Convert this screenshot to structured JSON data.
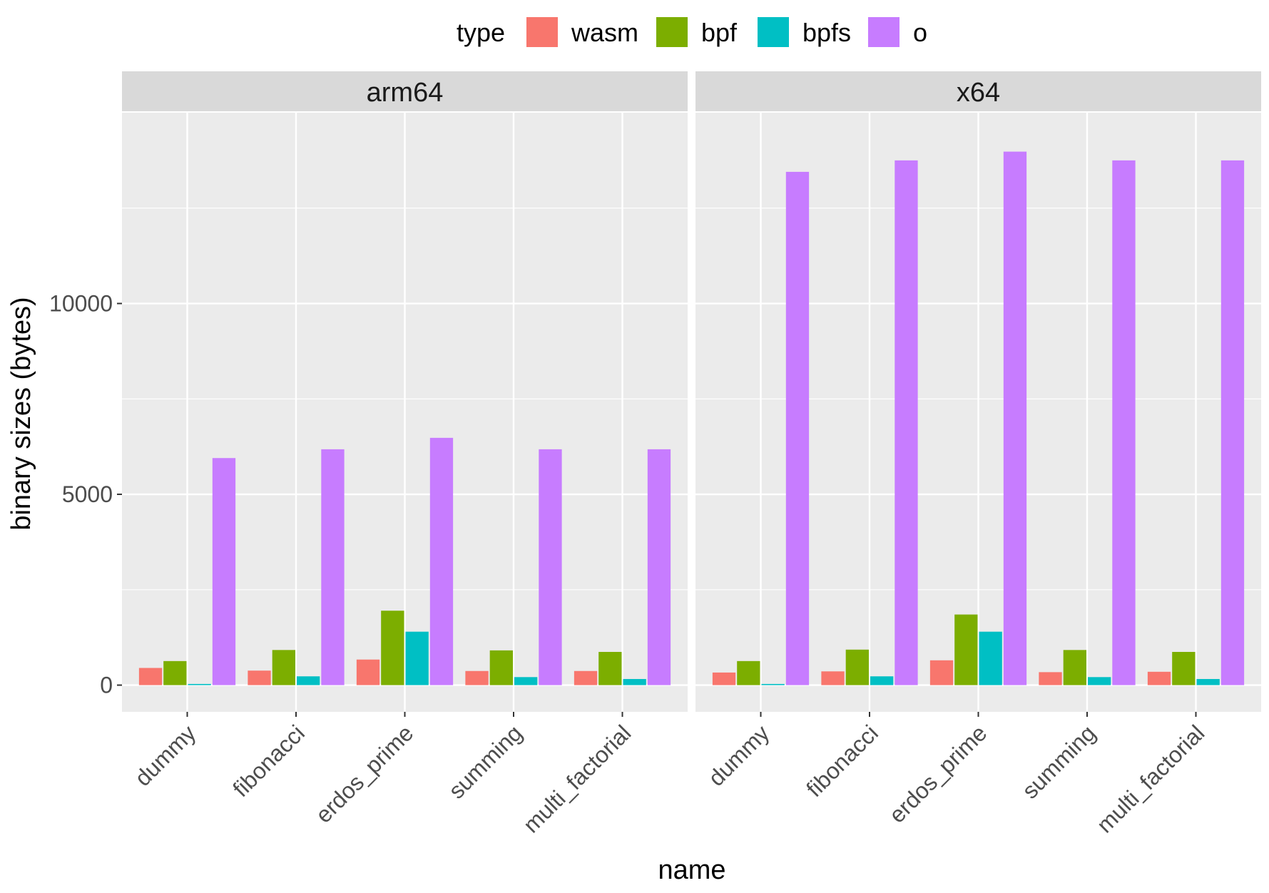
{
  "chart_data": {
    "type": "bar",
    "xlabel": "name",
    "ylabel": "binary sizes (bytes)",
    "ylim": [
      -700,
      15000
    ],
    "yticks": [
      0,
      5000,
      10000
    ],
    "legend": {
      "title": "type",
      "position": "top",
      "entries": [
        {
          "name": "wasm",
          "color": "#F8766D"
        },
        {
          "name": "bpf",
          "color": "#7CAE00"
        },
        {
          "name": "bpfs",
          "color": "#00BFC4"
        },
        {
          "name": "o",
          "color": "#C77CFF"
        }
      ]
    },
    "categories": [
      "dummy",
      "fibonacci",
      "erdos_prime",
      "summing",
      "multi_factorial"
    ],
    "panels": [
      {
        "label": "arm64",
        "series": [
          {
            "name": "wasm",
            "values": [
              450,
              380,
              670,
              370,
              370
            ]
          },
          {
            "name": "bpf",
            "values": [
              630,
              920,
              1950,
              910,
              870
            ]
          },
          {
            "name": "bpfs",
            "values": [
              30,
              230,
              1400,
              210,
              160
            ]
          },
          {
            "name": "o",
            "values": [
              5950,
              6180,
              6480,
              6180,
              6180
            ]
          }
        ]
      },
      {
        "label": "x64",
        "series": [
          {
            "name": "wasm",
            "values": [
              330,
              360,
              650,
              340,
              350
            ]
          },
          {
            "name": "bpf",
            "values": [
              630,
              930,
              1850,
              920,
              870
            ]
          },
          {
            "name": "bpfs",
            "values": [
              30,
              230,
              1400,
              210,
              160
            ]
          },
          {
            "name": "o",
            "values": [
              13450,
              13750,
              13980,
              13750,
              13750
            ]
          }
        ]
      }
    ]
  }
}
